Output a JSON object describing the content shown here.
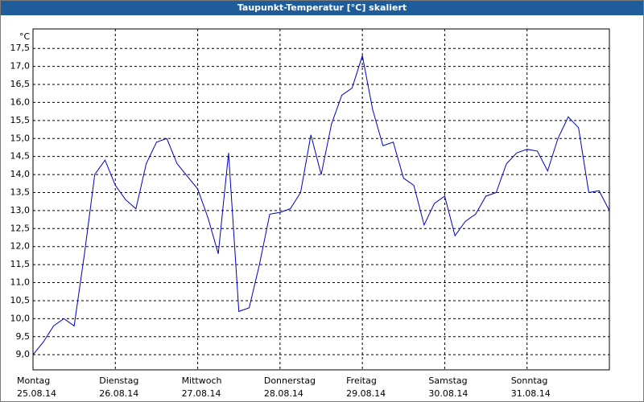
{
  "chart_data": {
    "type": "line",
    "title": "Taupunkt-Temperatur [°C] skaliert",
    "unit": "°C",
    "color": "#0000c0",
    "grid": true,
    "days": [
      {
        "weekday": "Montag",
        "date": "25.08.14"
      },
      {
        "weekday": "Dienstag",
        "date": "26.08.14"
      },
      {
        "weekday": "Mittwoch",
        "date": "27.08.14"
      },
      {
        "weekday": "Donnerstag",
        "date": "28.08.14"
      },
      {
        "weekday": "Freitag",
        "date": "29.08.14"
      },
      {
        "weekday": "Samstag",
        "date": "30.08.14"
      },
      {
        "weekday": "Sonntag",
        "date": "31.08.14"
      }
    ],
    "values": [
      9.0,
      9.35,
      9.8,
      10.0,
      9.8,
      11.8,
      14.0,
      14.4,
      13.7,
      13.3,
      13.05,
      14.3,
      14.9,
      15.0,
      14.3,
      13.95,
      13.6,
      12.8,
      11.8,
      14.6,
      10.2,
      10.3,
      11.5,
      12.9,
      12.95,
      13.05,
      13.5,
      15.1,
      14.0,
      15.4,
      16.2,
      16.4,
      17.3,
      15.8,
      14.8,
      14.9,
      13.9,
      13.7,
      12.6,
      13.2,
      13.4,
      12.3,
      12.7,
      12.9,
      13.4,
      13.5,
      14.3,
      14.6,
      14.7,
      14.65,
      14.1,
      15.0,
      15.6,
      15.3,
      13.5,
      13.55,
      13.0
    ],
    "ylim": [
      8.58,
      18.04
    ],
    "yticks": [
      {
        "value": 9.0,
        "label": "9,0"
      },
      {
        "value": 9.5,
        "label": "9,5"
      },
      {
        "value": 10.0,
        "label": "10,0"
      },
      {
        "value": 10.5,
        "label": "10,5"
      },
      {
        "value": 11.0,
        "label": "11,0"
      },
      {
        "value": 11.5,
        "label": "11,5"
      },
      {
        "value": 12.0,
        "label": "12,0"
      },
      {
        "value": 12.5,
        "label": "12,5"
      },
      {
        "value": 13.0,
        "label": "13,0"
      },
      {
        "value": 13.5,
        "label": "13,5"
      },
      {
        "value": 14.0,
        "label": "14,0"
      },
      {
        "value": 14.5,
        "label": "14,5"
      },
      {
        "value": 15.0,
        "label": "15,0"
      },
      {
        "value": 15.5,
        "label": "15,5"
      },
      {
        "value": 16.0,
        "label": "16,0"
      },
      {
        "value": 16.5,
        "label": "16,5"
      },
      {
        "value": 17.0,
        "label": "17,0"
      },
      {
        "value": 17.5,
        "label": "17,5"
      }
    ]
  }
}
